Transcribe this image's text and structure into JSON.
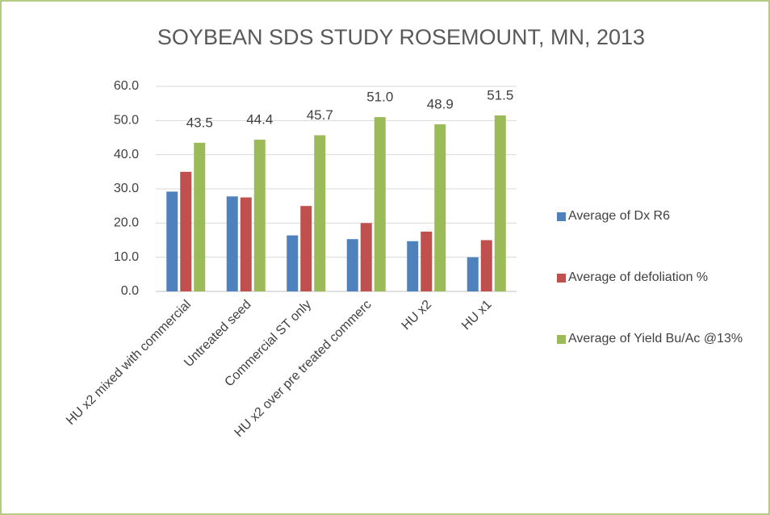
{
  "chart_data": {
    "type": "bar",
    "title": "SOYBEAN SDS STUDY ROSEMOUNT, MN, 2013",
    "categories": [
      "HU x2 mixed with commercial",
      "Untreated seed",
      "Commercial ST only",
      "HU x2 over pre treated commerc",
      "HU x2",
      "HU x1"
    ],
    "series": [
      {
        "name": "Average of Dx R6",
        "color": "#4f81bd",
        "values": [
          29.2,
          27.8,
          16.4,
          15.3,
          14.7,
          10.0
        ]
      },
      {
        "name": "Average of defoliation %",
        "color": "#c0504d",
        "values": [
          35.0,
          27.5,
          25.0,
          20.0,
          17.5,
          15.0
        ]
      },
      {
        "name": "Average of Yield Bu/Ac @13%",
        "color": "#9bbb59",
        "values": [
          43.5,
          44.4,
          45.7,
          51.0,
          48.9,
          51.5
        ],
        "value_labels": [
          "43.5",
          "44.4",
          "45.7",
          "51.0",
          "48.9",
          "51.5"
        ]
      }
    ],
    "ylim": [
      0,
      60
    ],
    "yticks": [
      {
        "value": 0,
        "label": "0.0"
      },
      {
        "value": 10,
        "label": "10.0"
      },
      {
        "value": 20,
        "label": "20.0"
      },
      {
        "value": 30,
        "label": "30.0"
      },
      {
        "value": 40,
        "label": "40.0"
      },
      {
        "value": 50,
        "label": "50.0"
      },
      {
        "value": 60,
        "label": "60.0"
      }
    ],
    "grid": true,
    "legend": "right"
  }
}
